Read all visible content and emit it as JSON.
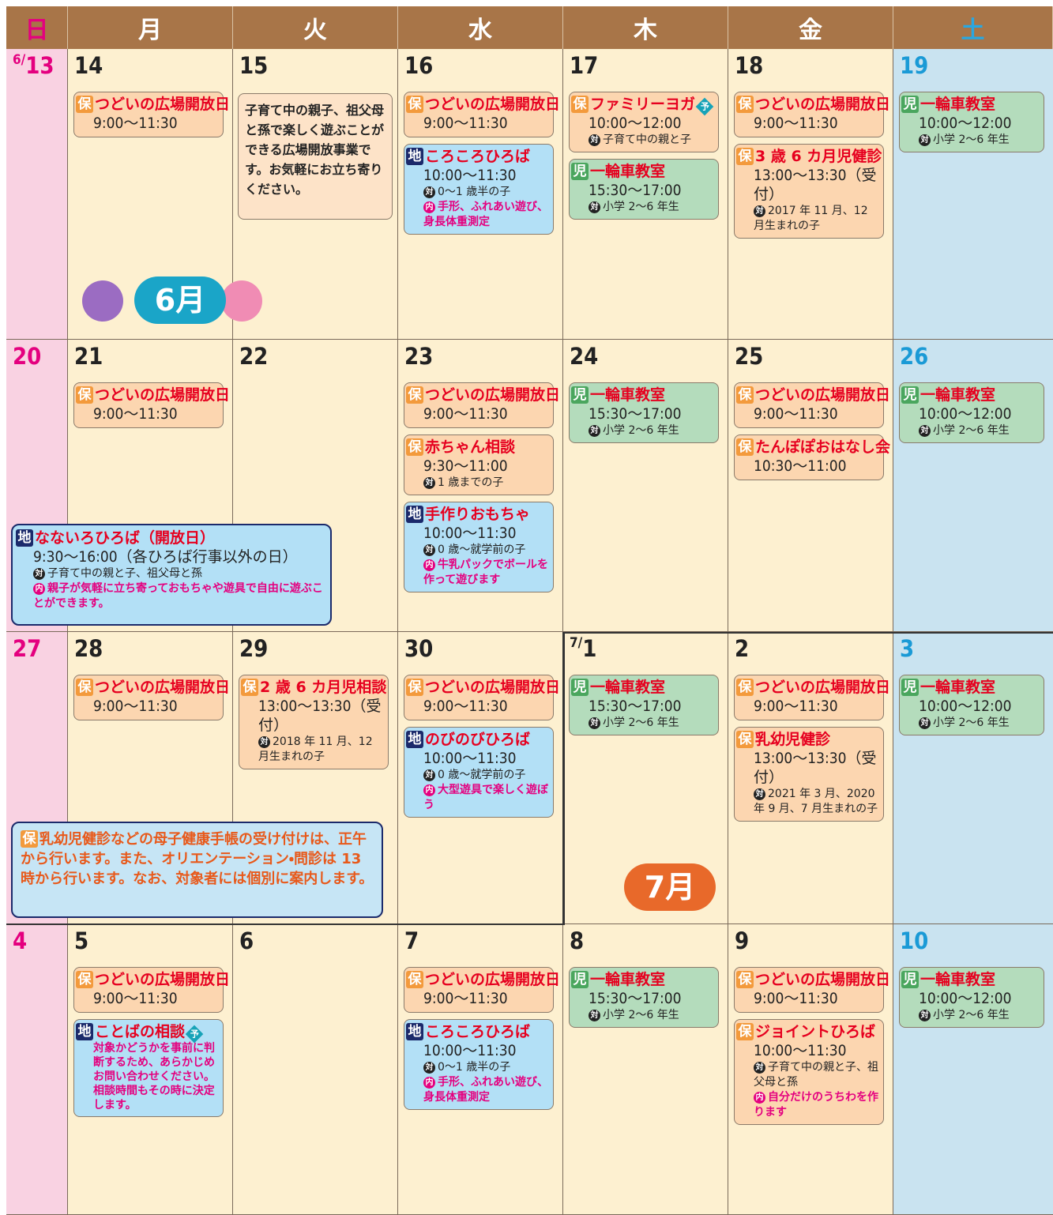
{
  "header": [
    "日",
    "月",
    "火",
    "水",
    "木",
    "金",
    "土"
  ],
  "icons": {
    "target": "対",
    "content": "内"
  },
  "tag_styles": {
    "保": {
      "fill": "#fcd6b0",
      "tag_color": "#f39a3c"
    },
    "児": {
      "fill": "#b4dcbc",
      "tag_color": "#4aa65e"
    },
    "地": {
      "fill": "#b3e0f6",
      "tag_color": "#1b2a6b"
    }
  },
  "month_labels": [
    "6月",
    "7月"
  ],
  "weeks": [
    {
      "days": [
        {
          "month": "6/",
          "day": "13",
          "events": []
        },
        {
          "day": "14",
          "events": [
            {
              "tag": "保",
              "title": "つどいの広場開放日",
              "time": "9:00〜11:30"
            }
          ]
        },
        {
          "day": "15",
          "events": [],
          "note": "子育て中の親子、祖父母と孫で楽しく遊ぶことができる広場開放事業です。お気軽にお立ち寄りください。"
        },
        {
          "day": "16",
          "events": [
            {
              "tag": "保",
              "title": "つどいの広場開放日",
              "time": "9:00〜11:30"
            },
            {
              "tag": "地",
              "title": "ころころひろば",
              "time": "10:00〜11:30",
              "target": "0〜1 歳半の子",
              "content": "手形、ふれあい遊び、身長体重測定"
            }
          ]
        },
        {
          "day": "17",
          "events": [
            {
              "tag": "保",
              "title": "ファミリーヨガ",
              "badge": "予",
              "time": "10:00〜12:00",
              "target": "子育て中の親と子"
            },
            {
              "tag": "児",
              "title": "一輪車教室",
              "time": "15:30〜17:00",
              "target": "小学 2〜6 年生"
            }
          ]
        },
        {
          "day": "18",
          "events": [
            {
              "tag": "保",
              "title": "つどいの広場開放日",
              "time": "9:00〜11:30"
            },
            {
              "tag": "保",
              "title": "3 歳 6 カ月児健診",
              "time": "13:00〜13:30（受付）",
              "target": "2017 年 11 月、12 月生まれの子"
            }
          ]
        },
        {
          "day": "19",
          "events": [
            {
              "tag": "児",
              "title": "一輪車教室",
              "time": "10:00〜12:00",
              "target": "小学 2〜6 年生"
            }
          ]
        }
      ]
    },
    {
      "days": [
        {
          "day": "20",
          "events": []
        },
        {
          "day": "21",
          "events": [
            {
              "tag": "保",
              "title": "つどいの広場開放日",
              "time": "9:00〜11:30"
            }
          ]
        },
        {
          "day": "22",
          "events": []
        },
        {
          "day": "23",
          "events": [
            {
              "tag": "保",
              "title": "つどいの広場開放日",
              "time": "9:00〜11:30"
            },
            {
              "tag": "保",
              "title": "赤ちゃん相談",
              "time": "9:30〜11:00",
              "target": "1 歳までの子"
            },
            {
              "tag": "地",
              "title": "手作りおもちゃ",
              "time": "10:00〜11:30",
              "target": "0 歳〜就学前の子",
              "content": "牛乳パックでボールを作って遊びます"
            }
          ]
        },
        {
          "day": "24",
          "events": [
            {
              "tag": "児",
              "title": "一輪車教室",
              "time": "15:30〜17:00",
              "target": "小学 2〜6 年生"
            }
          ]
        },
        {
          "day": "25",
          "events": [
            {
              "tag": "保",
              "title": "つどいの広場開放日",
              "time": "9:00〜11:30"
            },
            {
              "tag": "保",
              "title": "たんぽぽおはなし会",
              "time": "10:30〜11:00"
            }
          ]
        },
        {
          "day": "26",
          "events": [
            {
              "tag": "児",
              "title": "一輪車教室",
              "time": "10:00〜12:00",
              "target": "小学 2〜6 年生"
            }
          ]
        }
      ],
      "banner": {
        "tag": "地",
        "title": "なないろひろば（開放日）",
        "time": "9:30〜16:00（各ひろば行事以外の日）",
        "target": "子育て中の親と子、祖父母と孫",
        "content": "親子が気軽に立ち寄っておもちゃや遊具で自由に遊ぶことができます。"
      }
    },
    {
      "days": [
        {
          "day": "27",
          "events": []
        },
        {
          "day": "28",
          "events": [
            {
              "tag": "保",
              "title": "つどいの広場開放日",
              "time": "9:00〜11:30"
            }
          ]
        },
        {
          "day": "29",
          "events": [
            {
              "tag": "保",
              "title": "2 歳 6 カ月児相談",
              "time": "13:00〜13:30（受付）",
              "target": "2018 年 11 月、12 月生まれの子"
            }
          ]
        },
        {
          "day": "30",
          "events": [
            {
              "tag": "保",
              "title": "つどいの広場開放日",
              "time": "9:00〜11:30"
            },
            {
              "tag": "地",
              "title": "のびのびひろば",
              "time": "10:00〜11:30",
              "target": "0 歳〜就学前の子",
              "content": "大型遊具で楽しく遊ぼう"
            }
          ]
        },
        {
          "month": "7/",
          "day": "1",
          "events": [
            {
              "tag": "児",
              "title": "一輪車教室",
              "time": "15:30〜17:00",
              "target": "小学 2〜6 年生"
            }
          ]
        },
        {
          "day": "2",
          "events": [
            {
              "tag": "保",
              "title": "つどいの広場開放日",
              "time": "9:00〜11:30"
            },
            {
              "tag": "保",
              "title": "乳幼児健診",
              "time": "13:00〜13:30（受付）",
              "target": "2021 年 3 月、2020 年 9 月、7 月生まれの子"
            }
          ]
        },
        {
          "day": "3",
          "events": [
            {
              "tag": "児",
              "title": "一輪車教室",
              "time": "10:00〜12:00",
              "target": "小学 2〜6 年生"
            }
          ]
        }
      ],
      "notice": {
        "tag": "保",
        "text": "乳幼児健診などの母子健康手帳の受け付けは、正午から行います。また、オリエンテーション・問診は 13 時から行います。なお、対象者には個別に案内します。"
      }
    },
    {
      "days": [
        {
          "day": "4",
          "events": []
        },
        {
          "day": "5",
          "events": [
            {
              "tag": "保",
              "title": "つどいの広場開放日",
              "time": "9:00〜11:30"
            },
            {
              "tag": "地",
              "title": "ことばの相談",
              "badge": "予",
              "description": "対象かどうかを事前に判断するため、あらかじめお問い合わせください。相談時間もその時に決定します。"
            }
          ]
        },
        {
          "day": "6",
          "events": []
        },
        {
          "day": "7",
          "events": [
            {
              "tag": "保",
              "title": "つどいの広場開放日",
              "time": "9:00〜11:30"
            },
            {
              "tag": "地",
              "title": "ころころひろば",
              "time": "10:00〜11:30",
              "target": "0〜1 歳半の子",
              "content": "手形、ふれあい遊び、身長体重測定"
            }
          ]
        },
        {
          "day": "8",
          "events": [
            {
              "tag": "児",
              "title": "一輪車教室",
              "time": "15:30〜17:00",
              "target": "小学 2〜6 年生"
            }
          ]
        },
        {
          "day": "9",
          "events": [
            {
              "tag": "保",
              "title": "つどいの広場開放日",
              "time": "9:00〜11:30"
            },
            {
              "tag": "保",
              "title": "ジョイントひろば",
              "time": "10:00〜11:30",
              "target": "子育て中の親と子、祖父母と孫",
              "content": "自分だけのうちわを作ります"
            }
          ]
        },
        {
          "day": "10",
          "events": [
            {
              "tag": "児",
              "title": "一輪車教室",
              "time": "10:00〜12:00",
              "target": "小学 2〜6 年生"
            }
          ]
        }
      ]
    }
  ]
}
